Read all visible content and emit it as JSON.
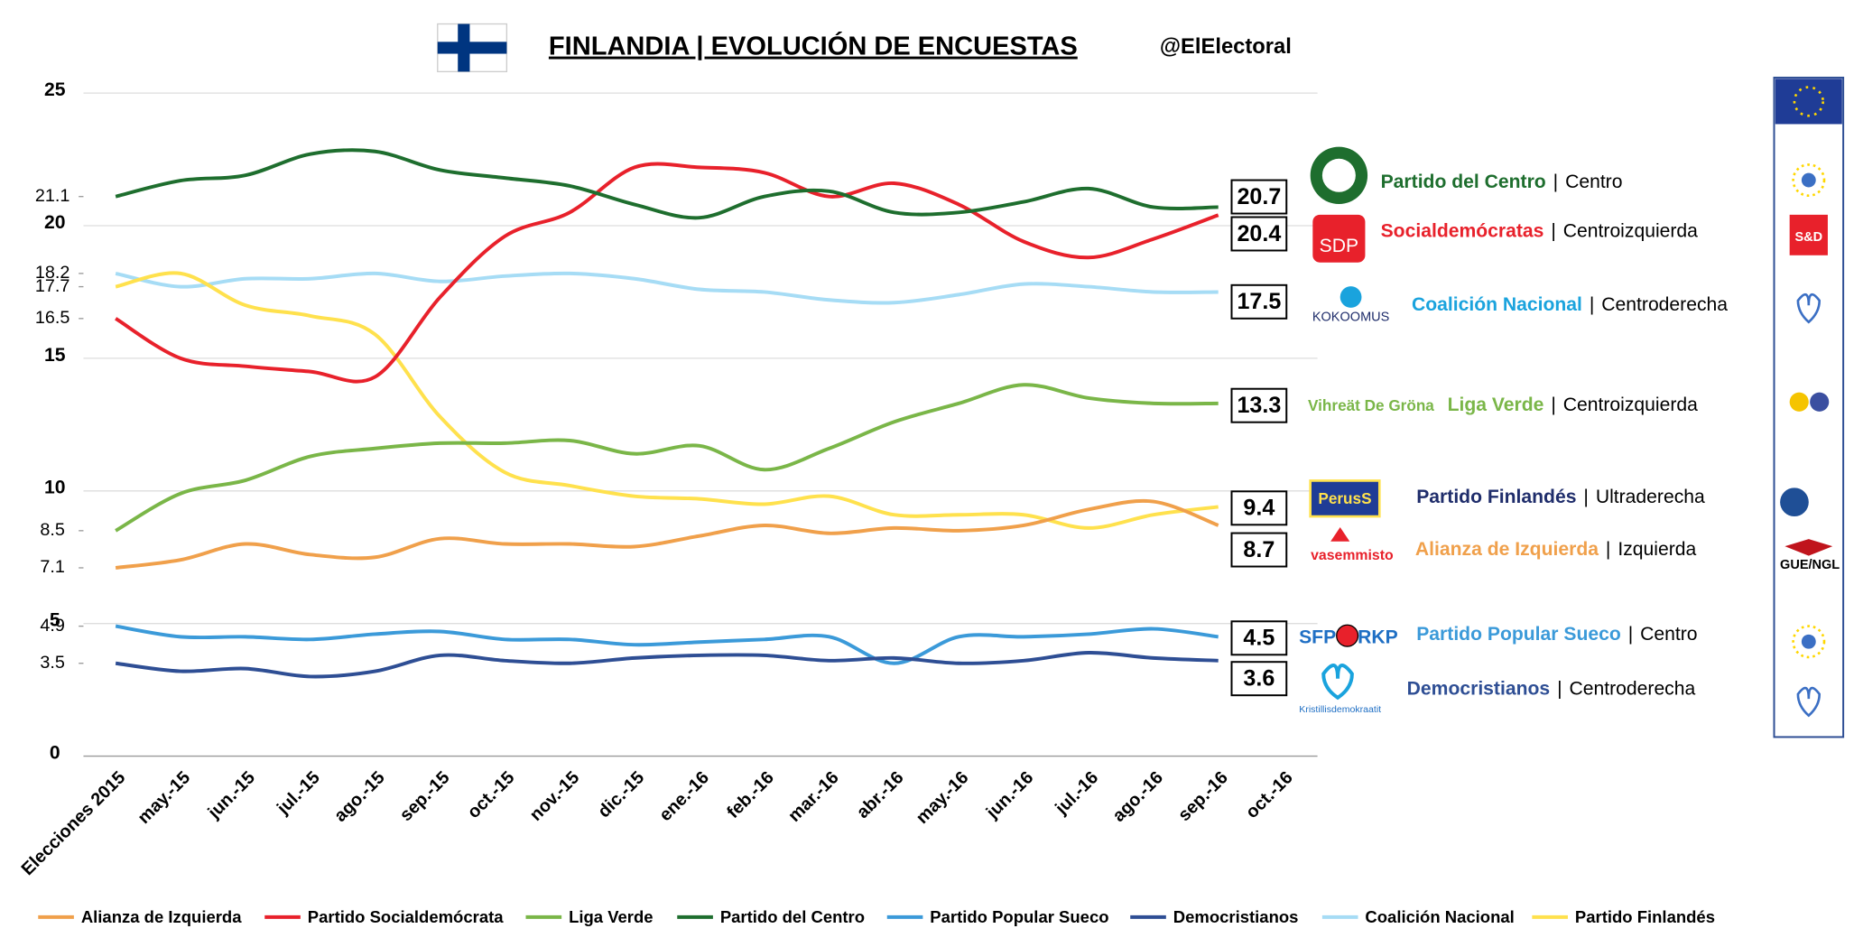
{
  "chart_data": {
    "type": "line",
    "title": "FINLANDIA | EVOLUCIÓN DE ENCUESTAS",
    "handle": "@ElElectoral",
    "categories": [
      "Elecciones 2015",
      "may.-15",
      "jun.-15",
      "jul.-15",
      "ago.-15",
      "sep.-15",
      "oct.-15",
      "nov.-15",
      "dic.-15",
      "ene.-16",
      "feb.-16",
      "mar.-16",
      "abr.-16",
      "may.-16",
      "jun.-16",
      "jul.-16",
      "ago.-16",
      "sep.-16",
      "oct.-16"
    ],
    "ylim": [
      0,
      25
    ],
    "yticks": [
      0,
      5,
      10,
      15,
      20,
      25
    ],
    "yticks_minor": [
      3.5,
      4.9,
      7.1,
      8.5,
      16.5,
      17.7,
      18.2,
      21.1
    ],
    "grid": true,
    "legend": "bottom",
    "series": [
      {
        "name": "Alianza de Izquierda",
        "color": "#f0a04b",
        "party": "Alianza de Izquierda",
        "ideology": "Izquierda",
        "logo": "vasemmisto",
        "values": [
          7.1,
          7.4,
          8.0,
          7.6,
          7.5,
          8.2,
          8.0,
          8.0,
          7.9,
          8.3,
          8.7,
          8.4,
          8.6,
          8.5,
          8.7,
          9.3,
          9.6,
          8.7,
          null
        ]
      },
      {
        "name": "Partido Socialdemócrata",
        "color": "#e8212b",
        "party": "Socialdemócratas",
        "ideology": "Centroizquierda",
        "logo": "SDP",
        "values": [
          16.5,
          15.0,
          14.7,
          14.5,
          14.3,
          17.3,
          19.6,
          20.5,
          22.2,
          22.2,
          22.0,
          21.1,
          21.6,
          20.8,
          19.4,
          18.8,
          19.5,
          20.4,
          null
        ]
      },
      {
        "name": "Liga Verde",
        "color": "#7ab648",
        "party": "Liga Verde",
        "ideology": "Centroizquierda",
        "logo": "Vihreät De Gröna",
        "values": [
          8.5,
          9.9,
          10.4,
          11.3,
          11.6,
          11.8,
          11.8,
          11.9,
          11.4,
          11.7,
          10.8,
          11.6,
          12.6,
          13.3,
          14.0,
          13.5,
          13.3,
          13.3,
          null
        ]
      },
      {
        "name": "Partido del Centro",
        "color": "#1e6e2e",
        "party": "Partido del Centro",
        "ideology": "Centro",
        "logo": "",
        "values": [
          21.1,
          21.7,
          21.9,
          22.7,
          22.8,
          22.1,
          21.8,
          21.5,
          20.8,
          20.3,
          21.1,
          21.3,
          20.5,
          20.5,
          20.9,
          21.4,
          20.7,
          20.7,
          null
        ]
      },
      {
        "name": "Partido Popular Sueco",
        "color": "#3b9ad9",
        "party": "Partido Popular Sueco",
        "ideology": "Centro",
        "logo": "SFP RKP",
        "values": [
          4.9,
          4.5,
          4.5,
          4.4,
          4.6,
          4.7,
          4.4,
          4.4,
          4.2,
          4.3,
          4.4,
          4.5,
          3.5,
          4.5,
          4.5,
          4.6,
          4.8,
          4.5,
          null
        ]
      },
      {
        "name": "Democristianos",
        "color": "#2e4e94",
        "party": "Democristianos",
        "ideology": "Centroderecha",
        "logo": "Kristillisdemokraatit",
        "values": [
          3.5,
          3.2,
          3.3,
          3.0,
          3.2,
          3.8,
          3.6,
          3.5,
          3.7,
          3.8,
          3.8,
          3.6,
          3.7,
          3.5,
          3.6,
          3.9,
          3.7,
          3.6,
          null
        ]
      },
      {
        "name": "Coalición Nacional",
        "color": "#a6dcf5",
        "party": "Coalición Nacional",
        "ideology": "Centroderecha",
        "logo": "KOKOOMUS",
        "values": [
          18.2,
          17.7,
          18.0,
          18.0,
          18.2,
          17.9,
          18.1,
          18.2,
          18.0,
          17.6,
          17.5,
          17.2,
          17.1,
          17.4,
          17.8,
          17.7,
          17.5,
          17.5,
          null
        ]
      },
      {
        "name": "Partido Finlandés",
        "color": "#ffe14d",
        "party": "Partido Finlandés",
        "ideology": "Ultraderecha",
        "logo": "PerusS",
        "values": [
          17.7,
          18.2,
          17.0,
          16.6,
          15.9,
          12.8,
          10.7,
          10.2,
          9.8,
          9.7,
          9.5,
          9.8,
          9.1,
          9.1,
          9.1,
          8.6,
          9.1,
          9.4,
          null
        ]
      }
    ],
    "eu_groups": [
      "S&D",
      "GUE/NGL"
    ]
  }
}
